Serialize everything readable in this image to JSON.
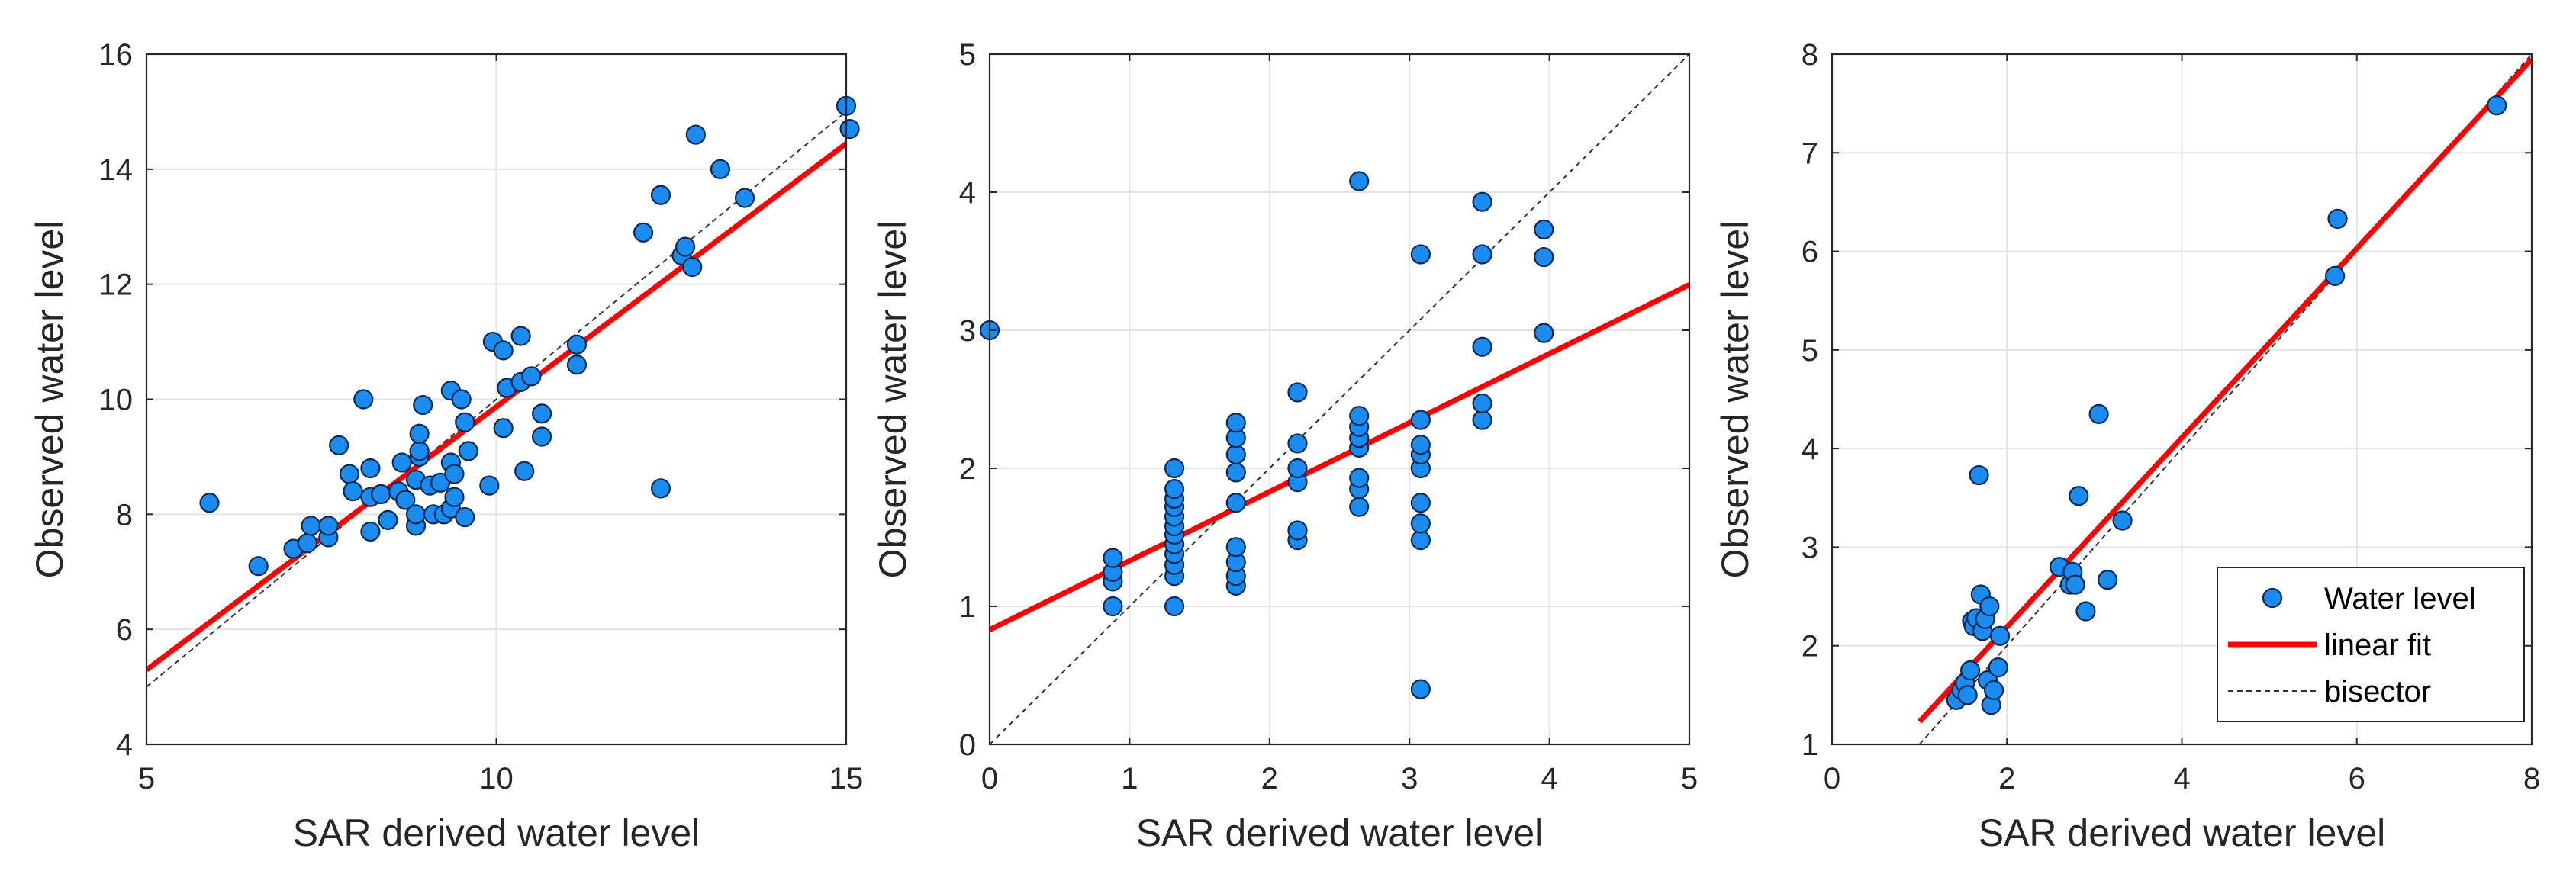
{
  "chart_data": [
    {
      "type": "scatter",
      "xlabel": "SAR derived water level",
      "ylabel": "Observed water level",
      "xlim": [
        5,
        15
      ],
      "ylim": [
        4,
        16
      ],
      "xticks": [
        5,
        10,
        15
      ],
      "yticks": [
        4,
        6,
        8,
        10,
        12,
        14,
        16
      ],
      "grid": true,
      "fit": {
        "slope": 0.915,
        "intercept": 0.72
      },
      "bisector": [
        [
          5,
          5
        ],
        [
          15,
          15
        ]
      ],
      "series": [
        {
          "name": "Water level",
          "points": [
            [
              5.9,
              8.2
            ],
            [
              6.6,
              7.1
            ],
            [
              7.1,
              7.4
            ],
            [
              7.3,
              7.5
            ],
            [
              7.35,
              7.8
            ],
            [
              7.6,
              7.6
            ],
            [
              7.6,
              7.8
            ],
            [
              7.75,
              9.2
            ],
            [
              7.9,
              8.7
            ],
            [
              7.95,
              8.4
            ],
            [
              8.1,
              10.0
            ],
            [
              8.2,
              7.7
            ],
            [
              8.2,
              8.3
            ],
            [
              8.2,
              8.8
            ],
            [
              8.35,
              8.35
            ],
            [
              8.45,
              7.9
            ],
            [
              8.6,
              8.4
            ],
            [
              8.65,
              8.9
            ],
            [
              8.7,
              8.25
            ],
            [
              8.85,
              7.8
            ],
            [
              8.85,
              8.0
            ],
            [
              8.85,
              8.6
            ],
            [
              8.9,
              9.0
            ],
            [
              8.9,
              9.1
            ],
            [
              8.95,
              9.9
            ],
            [
              8.9,
              9.4
            ],
            [
              9.05,
              8.5
            ],
            [
              9.1,
              8.0
            ],
            [
              9.2,
              8.55
            ],
            [
              9.25,
              8.0
            ],
            [
              9.35,
              8.1
            ],
            [
              9.35,
              8.9
            ],
            [
              9.4,
              8.7
            ],
            [
              9.4,
              8.3
            ],
            [
              9.35,
              10.15
            ],
            [
              9.5,
              10.0
            ],
            [
              9.55,
              9.6
            ],
            [
              9.6,
              9.1
            ],
            [
              9.55,
              7.95
            ],
            [
              9.9,
              8.5
            ],
            [
              9.95,
              11.0
            ],
            [
              10.1,
              10.85
            ],
            [
              10.1,
              9.5
            ],
            [
              10.15,
              10.2
            ],
            [
              10.35,
              11.1
            ],
            [
              10.35,
              10.3
            ],
            [
              10.4,
              8.75
            ],
            [
              10.5,
              10.4
            ],
            [
              10.65,
              9.75
            ],
            [
              10.65,
              9.35
            ],
            [
              11.15,
              10.95
            ],
            [
              11.15,
              10.6
            ],
            [
              12.1,
              12.9
            ],
            [
              12.35,
              13.55
            ],
            [
              12.35,
              8.45
            ],
            [
              12.65,
              12.5
            ],
            [
              12.7,
              12.65
            ],
            [
              12.8,
              12.3
            ],
            [
              12.85,
              14.6
            ],
            [
              13.2,
              14.0
            ],
            [
              13.55,
              13.5
            ],
            [
              15.0,
              15.1
            ],
            [
              15.05,
              14.7
            ]
          ]
        }
      ]
    },
    {
      "type": "scatter",
      "xlabel": "SAR derived water level",
      "ylabel": "Observed water level",
      "xlim": [
        0,
        5
      ],
      "ylim": [
        0,
        5
      ],
      "xticks": [
        0,
        1,
        2,
        3,
        4,
        5
      ],
      "yticks": [
        0,
        1,
        2,
        3,
        4,
        5
      ],
      "grid": true,
      "fit": {
        "slope": 0.5,
        "intercept": 0.83
      },
      "bisector": [
        [
          0,
          0
        ],
        [
          5,
          5
        ]
      ],
      "series": [
        {
          "name": "Water level",
          "points": [
            [
              0.0,
              3.0
            ],
            [
              0.88,
              1.0
            ],
            [
              0.88,
              1.18
            ],
            [
              0.88,
              1.25
            ],
            [
              0.88,
              1.35
            ],
            [
              1.32,
              1.0
            ],
            [
              1.32,
              1.22
            ],
            [
              1.32,
              1.3
            ],
            [
              1.32,
              1.38
            ],
            [
              1.32,
              1.45
            ],
            [
              1.32,
              1.52
            ],
            [
              1.32,
              1.58
            ],
            [
              1.32,
              1.65
            ],
            [
              1.32,
              1.72
            ],
            [
              1.32,
              1.78
            ],
            [
              1.32,
              1.85
            ],
            [
              1.32,
              2.0
            ],
            [
              1.76,
              1.15
            ],
            [
              1.76,
              1.22
            ],
            [
              1.76,
              1.32
            ],
            [
              1.76,
              1.43
            ],
            [
              1.76,
              1.75
            ],
            [
              1.76,
              1.97
            ],
            [
              1.76,
              2.1
            ],
            [
              1.76,
              2.22
            ],
            [
              1.76,
              2.33
            ],
            [
              2.2,
              1.48
            ],
            [
              2.2,
              1.55
            ],
            [
              2.2,
              1.9
            ],
            [
              2.2,
              2.0
            ],
            [
              2.2,
              2.18
            ],
            [
              2.2,
              2.55
            ],
            [
              2.64,
              1.72
            ],
            [
              2.64,
              1.85
            ],
            [
              2.64,
              1.93
            ],
            [
              2.64,
              2.15
            ],
            [
              2.64,
              2.22
            ],
            [
              2.64,
              2.3
            ],
            [
              2.64,
              2.38
            ],
            [
              2.64,
              4.08
            ],
            [
              3.08,
              0.4
            ],
            [
              3.08,
              1.48
            ],
            [
              3.08,
              1.6
            ],
            [
              3.08,
              1.75
            ],
            [
              3.08,
              2.0
            ],
            [
              3.08,
              2.1
            ],
            [
              3.08,
              2.17
            ],
            [
              3.08,
              2.35
            ],
            [
              3.08,
              3.55
            ],
            [
              3.52,
              2.35
            ],
            [
              3.52,
              2.47
            ],
            [
              3.52,
              2.88
            ],
            [
              3.52,
              3.55
            ],
            [
              3.52,
              3.93
            ],
            [
              3.96,
              2.98
            ],
            [
              3.96,
              3.53
            ],
            [
              3.96,
              3.73
            ]
          ]
        }
      ]
    },
    {
      "type": "scatter",
      "xlabel": "SAR derived water level",
      "ylabel": "Observed water level",
      "xlim": [
        0,
        8
      ],
      "ylim": [
        1,
        8
      ],
      "xticks": [
        0,
        2,
        4,
        6,
        8
      ],
      "yticks": [
        1,
        2,
        3,
        4,
        5,
        6,
        7,
        8
      ],
      "grid": true,
      "fit": {
        "slope": 0.96,
        "intercept": 0.27
      },
      "bisector": [
        [
          1,
          1
        ],
        [
          8,
          8
        ]
      ],
      "legend_position": "bottom-right",
      "legend": [
        {
          "label": "Water level",
          "kind": "marker"
        },
        {
          "label": "linear fit",
          "kind": "fit"
        },
        {
          "label": "bisector",
          "kind": "bisector"
        }
      ],
      "series": [
        {
          "name": "Water level",
          "points": [
            [
              1.42,
              1.45
            ],
            [
              1.48,
              1.55
            ],
            [
              1.52,
              1.62
            ],
            [
              1.55,
              1.5
            ],
            [
              1.58,
              1.75
            ],
            [
              1.6,
              2.25
            ],
            [
              1.62,
              2.2
            ],
            [
              1.65,
              2.28
            ],
            [
              1.68,
              3.73
            ],
            [
              1.7,
              2.52
            ],
            [
              1.72,
              2.15
            ],
            [
              1.75,
              2.27
            ],
            [
              1.78,
              1.65
            ],
            [
              1.8,
              2.4
            ],
            [
              1.82,
              1.4
            ],
            [
              1.85,
              1.55
            ],
            [
              1.9,
              1.78
            ],
            [
              1.92,
              2.1
            ],
            [
              2.6,
              2.8
            ],
            [
              2.72,
              2.62
            ],
            [
              2.75,
              2.75
            ],
            [
              2.78,
              2.62
            ],
            [
              2.82,
              3.52
            ],
            [
              2.9,
              2.35
            ],
            [
              3.05,
              4.35
            ],
            [
              3.15,
              2.67
            ],
            [
              3.32,
              3.27
            ],
            [
              5.75,
              5.75
            ],
            [
              5.78,
              6.33
            ],
            [
              7.6,
              7.48
            ]
          ]
        }
      ]
    }
  ]
}
